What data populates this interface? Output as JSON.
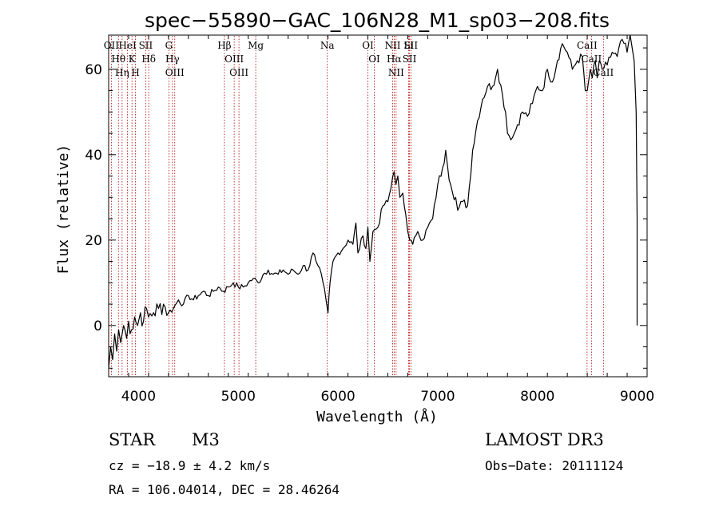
{
  "chart_data": {
    "type": "line",
    "title": "spec−55890−GAC_106N28_M1_sp03−208.fits",
    "xlabel": "Wavelength (Å)",
    "ylabel": "Flux (relative)",
    "xlim": [
      3700,
      9100
    ],
    "ylim": [
      -12,
      68
    ],
    "xticks": [
      4000,
      5000,
      6000,
      7000,
      8000,
      9000
    ],
    "yticks": [
      0,
      20,
      40,
      60
    ],
    "spectrum": {
      "name": "flux",
      "color": "#000000",
      "x": [
        3700,
        3720,
        3740,
        3760,
        3780,
        3800,
        3820,
        3850,
        3880,
        3900,
        3930,
        3960,
        3990,
        4020,
        4050,
        4080,
        4100,
        4150,
        4200,
        4250,
        4300,
        4350,
        4400,
        4450,
        4500,
        4550,
        4600,
        4650,
        4700,
        4750,
        4800,
        4850,
        4900,
        4950,
        5000,
        5050,
        5100,
        5150,
        5200,
        5250,
        5300,
        5350,
        5400,
        5450,
        5500,
        5550,
        5600,
        5650,
        5700,
        5750,
        5780,
        5800,
        5850,
        5880,
        5900,
        5910,
        5920,
        5950,
        6000,
        6050,
        6100,
        6150,
        6180,
        6200,
        6250,
        6280,
        6300,
        6320,
        6350,
        6400,
        6450,
        6500,
        6530,
        6550,
        6563,
        6580,
        6600,
        6620,
        6650,
        6680,
        6700,
        6720,
        6750,
        6780,
        6800,
        6850,
        6900,
        6950,
        7000,
        7050,
        7080,
        7100,
        7130,
        7150,
        7180,
        7200,
        7250,
        7300,
        7350,
        7400,
        7450,
        7500,
        7550,
        7580,
        7600,
        7650,
        7680,
        7700,
        7750,
        7800,
        7850,
        7900,
        7950,
        8000,
        8050,
        8100,
        8150,
        8200,
        8250,
        8300,
        8350,
        8400,
        8450,
        8480,
        8500,
        8530,
        8550,
        8580,
        8600,
        8620,
        8650,
        8700,
        8750,
        8800,
        8850,
        8900,
        8930,
        8950,
        8970,
        8990,
        9000,
        9000
      ],
      "y": [
        -10,
        -5,
        -8,
        -2,
        -6,
        -1,
        -4,
        0,
        -3,
        1,
        -1,
        2,
        0,
        3,
        1,
        4,
        2,
        3,
        4,
        5,
        3,
        4,
        6,
        5,
        7,
        6,
        7,
        8,
        7,
        8,
        9,
        8,
        9,
        10,
        9,
        9,
        10,
        11,
        10,
        12,
        13,
        12,
        12,
        13,
        12,
        13,
        12,
        14,
        13,
        17,
        15,
        14,
        10,
        6,
        3,
        7,
        10,
        15,
        17,
        18,
        20,
        19,
        24,
        17,
        21,
        18,
        23,
        15,
        22,
        23,
        28,
        29,
        32,
        35,
        36,
        33,
        35,
        30,
        31,
        26,
        22,
        20,
        19,
        21,
        22,
        20,
        23,
        25,
        33,
        37,
        41,
        37,
        33,
        31,
        30,
        27,
        29,
        28,
        41,
        48,
        53,
        56,
        56,
        58,
        60,
        54,
        50,
        45,
        44,
        47,
        50,
        49,
        52,
        56,
        55,
        60,
        57,
        62,
        66,
        64,
        60,
        62,
        63,
        55,
        55,
        60,
        58,
        62,
        58,
        62,
        60,
        61,
        64,
        63,
        67,
        64,
        68,
        65,
        62,
        50,
        25,
        0
      ]
    },
    "spectral_lines": [
      {
        "label": "Hθ",
        "x": 3798
      },
      {
        "label": "OII",
        "x": 3727
      },
      {
        "label": "Hη",
        "x": 3835
      },
      {
        "label": "K",
        "x": 3934
      },
      {
        "label": "HeI",
        "x": 3889
      },
      {
        "label": "H",
        "x": 3969
      },
      {
        "label": "Hδ",
        "x": 4102
      },
      {
        "label": "SII",
        "x": 4072
      },
      {
        "label": "OIII",
        "x": 4363
      },
      {
        "label": "Hγ",
        "x": 4340
      },
      {
        "label": "G",
        "x": 4304
      },
      {
        "label": "OIII",
        "x": 5007
      },
      {
        "label": "OIII",
        "x": 4959
      },
      {
        "label": "Hβ",
        "x": 4861
      },
      {
        "label": "Mg",
        "x": 5175
      },
      {
        "label": "Na",
        "x": 5893
      },
      {
        "label": "OI",
        "x": 6300
      },
      {
        "label": "OI",
        "x": 6364
      },
      {
        "label": "Hα",
        "x": 6563
      },
      {
        "label": "NII",
        "x": 6548
      },
      {
        "label": "NII",
        "x": 6583
      },
      {
        "label": "SII",
        "x": 6717
      },
      {
        "label": "Li",
        "x": 6708
      },
      {
        "label": "SII",
        "x": 6731
      },
      {
        "label": "CaII",
        "x": 8542
      },
      {
        "label": "CaII",
        "x": 8498
      },
      {
        "label": "CaII",
        "x": 8662
      }
    ]
  },
  "info": {
    "object_class": "STAR",
    "subclass": "M3",
    "cz": "cz = −18.9 ± 4.2 km/s",
    "coords": "RA = 106.04014, DEC =  28.46264",
    "survey": "LAMOST DR3",
    "obs_date": "Obs−Date: 20111124"
  },
  "colors": {
    "line_marker": "#b00000",
    "spectrum": "#000000"
  }
}
